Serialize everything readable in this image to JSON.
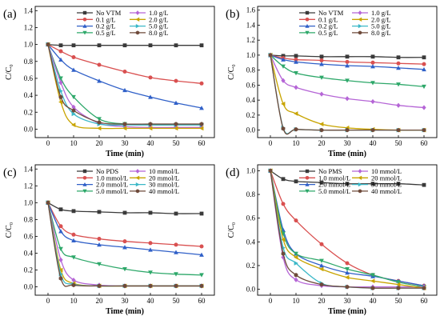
{
  "chart_data": [
    {
      "type": "line",
      "panel_label": "(a)",
      "xlabel": "Time (min)",
      "ylabel": "C/C₀",
      "xlim": [
        -5,
        65
      ],
      "ylim": [
        -0.1,
        1.45
      ],
      "xticks": [
        0,
        10,
        20,
        30,
        40,
        50,
        60
      ],
      "yticks": [
        0.0,
        0.2,
        0.4,
        0.6,
        0.8,
        1.0,
        1.2,
        1.4
      ],
      "x": [
        0,
        5,
        10,
        20,
        30,
        40,
        50,
        60
      ],
      "series": [
        {
          "name": "No VTM",
          "color": "#3a3a3a",
          "marker": "square",
          "values": [
            1.0,
            0.99,
            0.99,
            0.99,
            0.99,
            0.99,
            0.99,
            0.99
          ]
        },
        {
          "name": "0.1 g/L",
          "color": "#d95050",
          "marker": "circle",
          "values": [
            1.0,
            0.92,
            0.85,
            0.76,
            0.68,
            0.61,
            0.57,
            0.54
          ]
        },
        {
          "name": "0.2 g/L",
          "color": "#3060c8",
          "marker": "triangle-up",
          "values": [
            1.0,
            0.82,
            0.7,
            0.57,
            0.46,
            0.38,
            0.31,
            0.25
          ]
        },
        {
          "name": "0.5 g/L",
          "color": "#2ea86a",
          "marker": "triangle-down",
          "values": [
            1.0,
            0.6,
            0.38,
            0.12,
            0.06,
            0.05,
            0.05,
            0.05
          ]
        },
        {
          "name": "1.0 g/L",
          "color": "#b565d6",
          "marker": "diamond",
          "values": [
            1.0,
            0.55,
            0.26,
            0.07,
            0.03,
            0.02,
            0.02,
            0.02
          ]
        },
        {
          "name": "2.0 g/L",
          "color": "#c8a400",
          "marker": "triangle-left",
          "values": [
            1.0,
            0.32,
            0.05,
            0.01,
            0.01,
            0.01,
            0.01,
            0.01
          ]
        },
        {
          "name": "5.0 g/L",
          "color": "#3bb8c8",
          "marker": "triangle-right",
          "values": [
            1.0,
            0.45,
            0.18,
            0.06,
            0.05,
            0.05,
            0.05,
            0.05
          ]
        },
        {
          "name": "8.0 g/L",
          "color": "#6e4a3a",
          "marker": "hexagon",
          "values": [
            1.0,
            0.38,
            0.22,
            0.08,
            0.06,
            0.06,
            0.06,
            0.06
          ]
        }
      ]
    },
    {
      "type": "line",
      "panel_label": "(b)",
      "xlabel": "Time (min)",
      "ylabel": "C/C₀",
      "xlim": [
        -5,
        65
      ],
      "ylim": [
        -0.1,
        1.65
      ],
      "xticks": [
        0,
        10,
        20,
        30,
        40,
        50,
        60
      ],
      "yticks": [
        0.0,
        0.2,
        0.4,
        0.6,
        0.8,
        1.0,
        1.2,
        1.4,
        1.6
      ],
      "x": [
        0,
        5,
        10,
        20,
        30,
        40,
        50,
        60
      ],
      "series": [
        {
          "name": "No VTM",
          "color": "#3a3a3a",
          "marker": "square",
          "values": [
            1.0,
            0.99,
            0.99,
            0.98,
            0.98,
            0.98,
            0.97,
            0.97
          ]
        },
        {
          "name": "0.1 g/L",
          "color": "#d95050",
          "marker": "circle",
          "values": [
            1.0,
            0.96,
            0.94,
            0.93,
            0.91,
            0.9,
            0.89,
            0.88
          ]
        },
        {
          "name": "0.2 g/L",
          "color": "#3060c8",
          "marker": "triangle-up",
          "values": [
            1.0,
            0.94,
            0.91,
            0.88,
            0.86,
            0.85,
            0.83,
            0.81
          ]
        },
        {
          "name": "0.5 g/L",
          "color": "#2ea86a",
          "marker": "triangle-down",
          "values": [
            1.0,
            0.85,
            0.76,
            0.7,
            0.66,
            0.63,
            0.61,
            0.58
          ]
        },
        {
          "name": "1.0 g/L",
          "color": "#b565d6",
          "marker": "diamond",
          "values": [
            1.0,
            0.66,
            0.57,
            0.48,
            0.42,
            0.38,
            0.33,
            0.3
          ]
        },
        {
          "name": "2.0 g/L",
          "color": "#c8a400",
          "marker": "triangle-left",
          "values": [
            1.0,
            0.35,
            0.22,
            0.08,
            0.03,
            0.01,
            0.0,
            0.0
          ]
        },
        {
          "name": "5.0 g/L",
          "color": "#3bb8c8",
          "marker": "triangle-right",
          "values": [
            1.0,
            0.03,
            0.01,
            0.0,
            0.0,
            0.0,
            0.0,
            0.0
          ]
        },
        {
          "name": "8.0 g/L",
          "color": "#6e4a3a",
          "marker": "hexagon",
          "values": [
            1.0,
            0.02,
            0.01,
            0.0,
            0.0,
            0.0,
            0.0,
            0.0
          ]
        }
      ]
    },
    {
      "type": "line",
      "panel_label": "(c)",
      "xlabel": "Time (min)",
      "ylabel": "C/C₀",
      "xlim": [
        -5,
        65
      ],
      "ylim": [
        -0.1,
        1.45
      ],
      "xticks": [
        0,
        10,
        20,
        30,
        40,
        50,
        60
      ],
      "yticks": [
        0.0,
        0.2,
        0.4,
        0.6,
        0.8,
        1.0,
        1.2,
        1.4
      ],
      "x": [
        0,
        5,
        10,
        20,
        30,
        40,
        50,
        60
      ],
      "series": [
        {
          "name": "No PDS",
          "color": "#3a3a3a",
          "marker": "square",
          "values": [
            1.0,
            0.92,
            0.9,
            0.89,
            0.88,
            0.88,
            0.87,
            0.87
          ]
        },
        {
          "name": "1.0 mmol/L",
          "color": "#d95050",
          "marker": "circle",
          "values": [
            1.0,
            0.72,
            0.62,
            0.57,
            0.54,
            0.52,
            0.5,
            0.48
          ]
        },
        {
          "name": "2.0 mmol/L",
          "color": "#3060c8",
          "marker": "triangle-up",
          "values": [
            1.0,
            0.66,
            0.55,
            0.5,
            0.47,
            0.44,
            0.41,
            0.38
          ]
        },
        {
          "name": "5.0 mmol/L",
          "color": "#2ea86a",
          "marker": "triangle-down",
          "values": [
            1.0,
            0.45,
            0.35,
            0.27,
            0.21,
            0.17,
            0.15,
            0.14
          ]
        },
        {
          "name": "10 mmol/L",
          "color": "#b565d6",
          "marker": "diamond",
          "values": [
            1.0,
            0.32,
            0.08,
            0.02,
            0.01,
            0.01,
            0.01,
            0.01
          ]
        },
        {
          "name": "20 mmol/L",
          "color": "#c8a400",
          "marker": "triangle-left",
          "values": [
            1.0,
            0.2,
            0.04,
            0.01,
            0.01,
            0.01,
            0.01,
            0.01
          ]
        },
        {
          "name": "30 mmol/L",
          "color": "#3bb8c8",
          "marker": "triangle-right",
          "values": [
            1.0,
            0.15,
            0.03,
            0.01,
            0.01,
            0.01,
            0.01,
            0.01
          ]
        },
        {
          "name": "40 mmol/L",
          "color": "#6e4a3a",
          "marker": "hexagon",
          "values": [
            1.0,
            0.1,
            0.02,
            0.01,
            0.01,
            0.01,
            0.01,
            0.01
          ]
        }
      ]
    },
    {
      "type": "line",
      "panel_label": "(d)",
      "xlabel": "Time (min)",
      "ylabel": "C/C₀",
      "xlim": [
        -5,
        65
      ],
      "ylim": [
        -0.05,
        1.05
      ],
      "xticks": [
        0,
        10,
        20,
        30,
        40,
        50,
        60
      ],
      "yticks": [
        0.0,
        0.2,
        0.4,
        0.6,
        0.8,
        1.0
      ],
      "x": [
        0,
        5,
        10,
        20,
        30,
        40,
        50,
        60
      ],
      "series": [
        {
          "name": "No PMS",
          "color": "#3a3a3a",
          "marker": "square",
          "values": [
            1.0,
            0.93,
            0.91,
            0.9,
            0.89,
            0.89,
            0.89,
            0.88
          ]
        },
        {
          "name": "1.0 mmol/L",
          "color": "#d95050",
          "marker": "circle",
          "values": [
            1.0,
            0.72,
            0.58,
            0.38,
            0.22,
            0.12,
            0.07,
            0.03
          ]
        },
        {
          "name": "2.0 mmol/L",
          "color": "#3060c8",
          "marker": "triangle-up",
          "values": [
            1.0,
            0.5,
            0.3,
            0.2,
            0.14,
            0.11,
            0.07,
            0.03
          ]
        },
        {
          "name": "5.0 mmol/L",
          "color": "#2ea86a",
          "marker": "triangle-down",
          "values": [
            1.0,
            0.47,
            0.3,
            0.24,
            0.17,
            0.12,
            0.06,
            0.02
          ]
        },
        {
          "name": "10 mmol/L",
          "color": "#b565d6",
          "marker": "diamond",
          "values": [
            1.0,
            0.27,
            0.08,
            0.03,
            0.02,
            0.02,
            0.02,
            0.02
          ]
        },
        {
          "name": "20 mmol/L",
          "color": "#c8a400",
          "marker": "triangle-left",
          "values": [
            1.0,
            0.42,
            0.27,
            0.17,
            0.1,
            0.07,
            0.04,
            0.01
          ]
        },
        {
          "name": "30 mmol/L",
          "color": "#3bb8c8",
          "marker": "triangle-right",
          "values": [
            1.0,
            0.35,
            0.22,
            0.05,
            0.02,
            0.01,
            0.01,
            0.01
          ]
        },
        {
          "name": "40 mmol/L",
          "color": "#6e4a3a",
          "marker": "hexagon",
          "values": [
            1.0,
            0.3,
            0.12,
            0.04,
            0.02,
            0.01,
            0.01,
            0.01
          ]
        }
      ]
    }
  ]
}
